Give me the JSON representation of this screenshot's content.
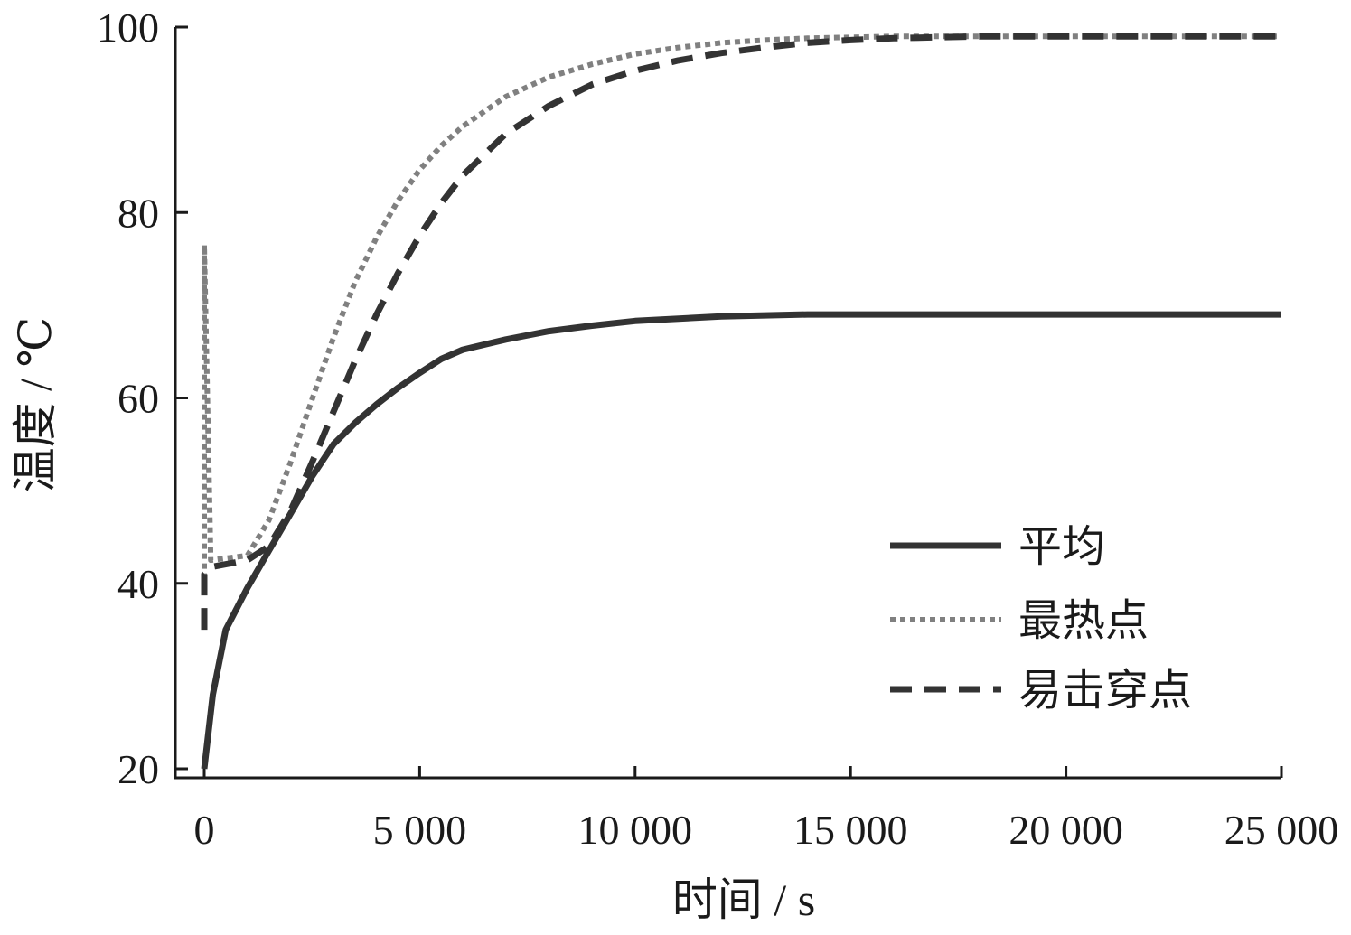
{
  "chart_data": {
    "type": "line",
    "xlabel": "时间 / s",
    "ylabel": "温度 / ℃",
    "xlim": [
      -800,
      25000
    ],
    "ylim": [
      19,
      100
    ],
    "xticks": [
      0,
      5000,
      10000,
      15000,
      20000,
      25000
    ],
    "xtick_labels": [
      "0",
      "5 000",
      "10 000",
      "15 000",
      "20 000",
      "25 000"
    ],
    "yticks": [
      20,
      40,
      60,
      80,
      100
    ],
    "ytick_labels": [
      "20",
      "40",
      "60",
      "80",
      "100"
    ],
    "grid": false,
    "legend_position": "bottom-right",
    "series": [
      {
        "name": "平均",
        "style": "solid",
        "color": "#333333",
        "x": [
          0,
          200,
          500,
          1000,
          1500,
          2000,
          2500,
          3000,
          3500,
          4000,
          4500,
          5000,
          5500,
          6000,
          7000,
          8000,
          9000,
          10000,
          12000,
          14000,
          16000,
          20000,
          25000
        ],
        "y": [
          20,
          28,
          35,
          39.5,
          43.5,
          47.5,
          51.5,
          55,
          57.3,
          59.3,
          61.1,
          62.7,
          64.2,
          65.2,
          66.3,
          67.2,
          67.8,
          68.3,
          68.8,
          69,
          69,
          69,
          69
        ]
      },
      {
        "name": "最热点",
        "style": "dotted",
        "color": "#808080",
        "x": [
          0,
          0.001,
          150,
          1000,
          1500,
          2000,
          2500,
          3000,
          3500,
          4000,
          4500,
          5000,
          5500,
          6000,
          7000,
          8000,
          9000,
          10000,
          11000,
          12000,
          13000,
          14000,
          15000,
          16000,
          18000,
          20000,
          25000
        ],
        "y": [
          40.5,
          76.5,
          42.5,
          43,
          46.8,
          53,
          59.8,
          66.5,
          72.5,
          77.3,
          81.3,
          84.6,
          87.2,
          89.3,
          92.5,
          94.6,
          96,
          97.1,
          97.8,
          98.3,
          98.6,
          98.8,
          98.9,
          99,
          99,
          99,
          99
        ]
      },
      {
        "name": "易击穿点",
        "style": "dashed",
        "color": "#333333",
        "x": [
          0,
          0.001,
          200,
          1000,
          1500,
          2000,
          2500,
          3000,
          3500,
          4000,
          4500,
          5000,
          5500,
          6000,
          7000,
          8000,
          9000,
          10000,
          11000,
          12000,
          13000,
          14000,
          15000,
          16000,
          18000,
          20000,
          25000
        ],
        "y": [
          35,
          41,
          41.8,
          42.5,
          44,
          47.8,
          53,
          58.5,
          64,
          69,
          73.5,
          77.5,
          81,
          84,
          88.5,
          91.5,
          93.8,
          95.3,
          96.4,
          97.2,
          97.8,
          98.3,
          98.6,
          98.8,
          99,
          99,
          99
        ]
      }
    ]
  }
}
